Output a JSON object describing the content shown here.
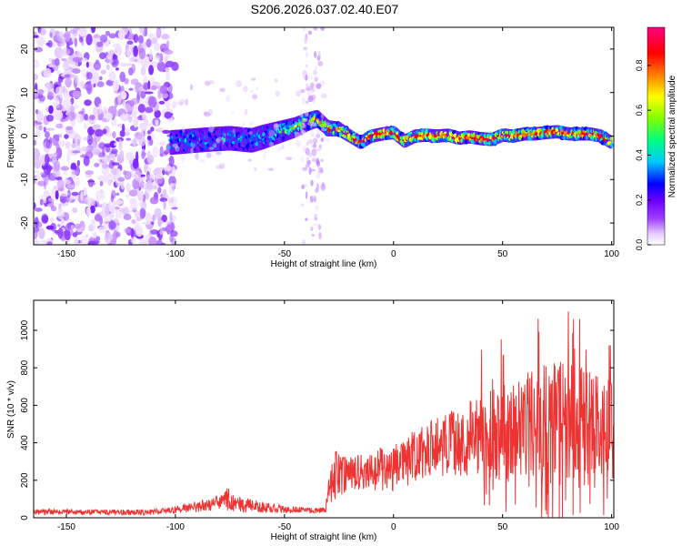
{
  "title": "S206.2026.037.02.40.E07",
  "chart_data": [
    {
      "type": "heatmap",
      "xlabel": "Height of straight line (km)",
      "ylabel": "Frequency (Hz)",
      "xlim": [
        -165,
        101
      ],
      "ylim": [
        -25,
        25
      ],
      "x_ticks": [
        -150,
        -100,
        -50,
        0,
        50,
        100
      ],
      "y_ticks": [
        -20,
        -10,
        0,
        10,
        20
      ],
      "colorbar": {
        "label": "Normalized spectral amplitude",
        "range": [
          0,
          0.97
        ],
        "ticks": [
          0.0,
          0.2,
          0.4,
          0.6,
          0.8
        ],
        "colors": [
          "#ffffff",
          "#e8ccff",
          "#a040ff",
          "#7000ff",
          "#0000ff",
          "#00c8ff",
          "#00ff80",
          "#80ff00",
          "#ffff00",
          "#ff8000",
          "#ff0000",
          "#ff0080"
        ]
      },
      "ridge": {
        "x": [
          -102,
          -95,
          -85,
          -75,
          -65,
          -55,
          -45,
          -40,
          -35,
          -30,
          -25,
          -20,
          -15,
          -10,
          -5,
          0,
          5,
          10,
          15,
          20,
          25,
          30,
          35,
          40,
          45,
          50,
          55,
          60,
          65,
          70,
          75,
          80,
          85,
          90,
          95,
          100
        ],
        "y": [
          -1.5,
          -1.2,
          -0.8,
          -0.5,
          -1.0,
          0.5,
          2.0,
          3.2,
          4.0,
          1.8,
          1.6,
          0.0,
          -1.5,
          0.0,
          0.5,
          0.8,
          -1.2,
          0.0,
          0.2,
          0.0,
          0.2,
          -0.5,
          -0.2,
          -0.6,
          -0.8,
          0.2,
          0.0,
          0.5,
          0.5,
          0.8,
          1.0,
          0.5,
          0.5,
          0.5,
          0.0,
          -1.5
        ]
      },
      "noise_region": {
        "x_range": [
          -165,
          -100
        ],
        "y_range": [
          -25,
          25
        ]
      }
    },
    {
      "type": "line",
      "xlabel": "Height of straight line (km)",
      "ylabel": "SNR (10 * v/v)",
      "xlim": [
        -165,
        101
      ],
      "ylim": [
        0,
        1160
      ],
      "x_ticks": [
        -150,
        -100,
        -50,
        0,
        50,
        100
      ],
      "y_ticks": [
        0,
        200,
        400,
        600,
        800,
        1000
      ],
      "color": "#ee3333",
      "envelope": {
        "x": [
          -165,
          -140,
          -110,
          -100,
          -90,
          -80,
          -76,
          -70,
          -60,
          -50,
          -40,
          -31,
          -30,
          -27,
          -20,
          -10,
          -5,
          0,
          10,
          20,
          30,
          40,
          50,
          60,
          65,
          70,
          80,
          90,
          100,
          101
        ],
        "center": [
          30,
          30,
          30,
          45,
          60,
          80,
          100,
          70,
          55,
          45,
          40,
          40,
          150,
          220,
          230,
          240,
          250,
          260,
          330,
          380,
          410,
          440,
          450,
          470,
          480,
          500,
          500,
          480,
          450,
          440
        ],
        "amplitude": [
          15,
          15,
          15,
          20,
          30,
          40,
          60,
          45,
          30,
          20,
          15,
          15,
          90,
          140,
          100,
          110,
          130,
          130,
          140,
          160,
          190,
          220,
          260,
          300,
          320,
          340,
          340,
          330,
          300,
          300
        ]
      }
    }
  ]
}
